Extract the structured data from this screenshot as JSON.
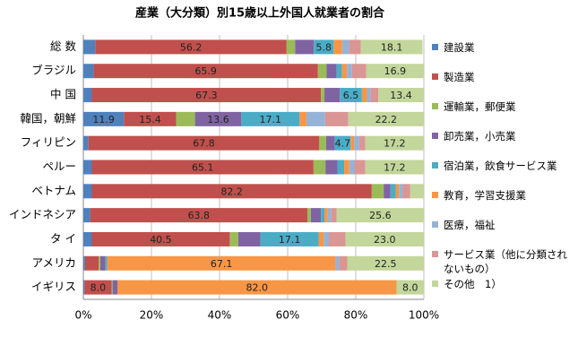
{
  "chart_data": {
    "type": "stacked_barh",
    "title": "産業（大分類）別15歳以上外国人就業者の割合",
    "categories": [
      "総 数",
      "ブラジル",
      "中 国",
      "韓国，朝鮮",
      "フィリピン",
      "ペルー",
      "ベトナム",
      "インドネシア",
      "タ イ",
      "アメリカ",
      "イギリス"
    ],
    "xlim": [
      0,
      100
    ],
    "xticks": [
      {
        "value": 0,
        "label": "0%"
      },
      {
        "value": 20,
        "label": "20%"
      },
      {
        "value": 40,
        "label": "40%"
      },
      {
        "value": 60,
        "label": "60%"
      },
      {
        "value": 80,
        "label": "80%"
      },
      {
        "value": 100,
        "label": "100%"
      }
    ],
    "grid": true,
    "legend": "right",
    "series": [
      {
        "name": "建設業",
        "color": "#4f81bd",
        "values": [
          3.5,
          3,
          2.5,
          11.9,
          1.5,
          2.5,
          2.5,
          2,
          2.5,
          0.5,
          0.3
        ],
        "value_labels": [
          null,
          null,
          null,
          "11.9",
          null,
          null,
          null,
          null,
          null,
          null,
          null
        ]
      },
      {
        "name": "製造業",
        "color": "#c0504d",
        "values": [
          56.2,
          65.9,
          67.3,
          15.4,
          67.8,
          65.1,
          82.2,
          63.8,
          40.5,
          4,
          8.0
        ],
        "value_labels": [
          "56.2",
          "65.9",
          "67.3",
          "15.4",
          "67.8",
          "65.1",
          "82.2",
          "63.8",
          "40.5",
          null,
          "8.0"
        ]
      },
      {
        "name": "運輸業，郵便業",
        "color": "#9bbb59",
        "values": [
          2.5,
          2.5,
          1,
          5.5,
          2,
          3.5,
          3.5,
          1,
          2.5,
          0.5,
          0.3
        ],
        "value_labels": [
          null,
          null,
          null,
          null,
          null,
          null,
          null,
          null,
          null,
          null,
          null
        ]
      },
      {
        "name": "卸売業，小売業",
        "color": "#8064a2",
        "values": [
          5.5,
          3,
          4.5,
          13.6,
          2.5,
          3.5,
          2,
          3,
          6.5,
          1.5,
          1.4
        ],
        "value_labels": [
          null,
          null,
          null,
          "13.6",
          null,
          null,
          null,
          null,
          null,
          null,
          null
        ]
      },
      {
        "name": "宿泊業，飲食サービス業",
        "color": "#4bacc6",
        "values": [
          5.8,
          1.5,
          6.5,
          17.1,
          4.7,
          2,
          1.5,
          1,
          17.1,
          0.5,
          0
        ],
        "value_labels": [
          "5.8",
          null,
          "6.5",
          "17.1",
          "4.7",
          null,
          null,
          null,
          "17.1",
          null,
          null
        ]
      },
      {
        "name": "教育，学習支援業",
        "color": "#f79646",
        "values": [
          2.5,
          1.5,
          1.5,
          2,
          1,
          1.5,
          1,
          1,
          1.5,
          67.1,
          82.0
        ],
        "value_labels": [
          null,
          null,
          null,
          null,
          null,
          null,
          null,
          null,
          null,
          "67.1",
          "82.0"
        ]
      },
      {
        "name": "医療，福祉",
        "color": "#95b3d7",
        "values": [
          2,
          1.5,
          1,
          5.5,
          1.5,
          1.5,
          1,
          1,
          1.5,
          1,
          0
        ],
        "value_labels": [
          null,
          null,
          null,
          null,
          null,
          null,
          null,
          null,
          null,
          null,
          null
        ]
      },
      {
        "name": "サービス業（他に分類されないもの）",
        "color": "#d99694",
        "values": [
          3.5,
          4.2,
          2.3,
          6.8,
          1.8,
          3.2,
          2.3,
          1.6,
          4.9,
          2.4,
          0
        ],
        "value_labels": [
          null,
          null,
          null,
          null,
          null,
          null,
          null,
          null,
          null,
          null,
          null
        ]
      },
      {
        "name": "その他　1）",
        "color": "#c3d69b",
        "values": [
          18.1,
          16.9,
          13.4,
          22.2,
          17.2,
          17.2,
          4,
          25.6,
          23.0,
          22.5,
          8.0
        ],
        "value_labels": [
          "18.1",
          "16.9",
          "13.4",
          "22.2",
          "17.2",
          "17.2",
          null,
          "25.6",
          "23.0",
          "22.5",
          "8.0"
        ]
      }
    ]
  }
}
